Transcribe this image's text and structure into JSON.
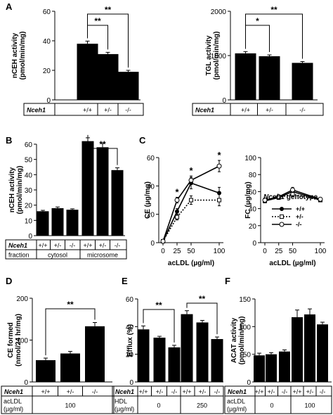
{
  "chart_data": [
    {
      "panel": "A",
      "type": "bar",
      "ylabel_lines": [
        "nCEH activity",
        "(pmol/min/mg)"
      ],
      "ylim": [
        0,
        60
      ],
      "yticks": [
        0,
        20,
        40,
        60
      ],
      "categories": [
        "+/+",
        "+/-",
        "-/-"
      ],
      "values": [
        38,
        31,
        19
      ],
      "errors": [
        1.8,
        1.2,
        1.0
      ],
      "table": [
        {
          "label": "Nceh1",
          "italic": true,
          "cells": [
            "+/+",
            "+/-",
            "-/-"
          ]
        }
      ],
      "significance": [
        {
          "from": 0,
          "to": 1,
          "label": "**"
        },
        {
          "from": 0,
          "to": 2,
          "label": "**"
        }
      ]
    },
    {
      "panel": "",
      "type": "bar",
      "ylabel_lines": [
        "TGL activity",
        "(pmol/min/mg)"
      ],
      "ylim": [
        0,
        2000
      ],
      "yticks": [
        0,
        1000,
        2000
      ],
      "categories": [
        "+/+",
        "+/-",
        "-/-"
      ],
      "values": [
        1050,
        985,
        835
      ],
      "errors": [
        40,
        30,
        30
      ],
      "table": [
        {
          "label": "Nceh1",
          "italic": true,
          "cells": [
            "+/+",
            "+/-",
            "-/-"
          ]
        }
      ],
      "significance": [
        {
          "from": 0,
          "to": 1,
          "label": "*"
        },
        {
          "from": 0,
          "to": 2,
          "label": "**"
        }
      ]
    },
    {
      "panel": "B",
      "type": "bar",
      "ylabel_lines": [
        "nCEH activity",
        "(pmol/min/mg)"
      ],
      "ylim": [
        0,
        60
      ],
      "yticks": [
        0,
        10,
        20,
        30,
        40,
        50,
        60
      ],
      "categories": [
        "+/+",
        "+/-",
        "-/-",
        "+/+",
        "+/-",
        "-/-"
      ],
      "values": [
        16,
        18,
        17,
        62,
        58,
        43
      ],
      "errors": [
        0.6,
        0.8,
        0.6,
        2.2,
        2.5,
        1.5
      ],
      "table": [
        {
          "label": "Nceh1",
          "italic": true,
          "cells": [
            "+/+",
            "+/-",
            "-/-",
            "+/+",
            "+/-",
            "-/-"
          ]
        },
        {
          "label": "fraction",
          "italic": false,
          "groups": [
            {
              "text": "cytosol",
              "span": 3
            },
            {
              "text": "microsome",
              "span": 3
            }
          ]
        }
      ],
      "significance": [
        {
          "from": 3,
          "to": 5,
          "label": "**"
        }
      ]
    },
    {
      "panel": "C",
      "type": "line",
      "ylabel": "CE (µg/mg)",
      "xlabel": "acLDL (µg/ml)",
      "x": [
        0,
        25,
        50,
        100
      ],
      "xticks": [
        0,
        25,
        50,
        100
      ],
      "ylim": [
        0,
        60
      ],
      "yticks": [
        0,
        20,
        40,
        60
      ],
      "series": [
        {
          "name": "+/+",
          "values": [
            1,
            22,
            42,
            35
          ],
          "errors": [
            0.5,
            2,
            4,
            4
          ],
          "style": "solid",
          "marker": "filled"
        },
        {
          "name": "+/-",
          "values": [
            1,
            18,
            30,
            30
          ],
          "errors": [
            0.5,
            2,
            3,
            4
          ],
          "style": "dotted",
          "marker": "square"
        },
        {
          "name": "-/-",
          "values": [
            1,
            30,
            44,
            54
          ],
          "errors": [
            0.5,
            2,
            3,
            4
          ],
          "style": "solid",
          "marker": "open"
        }
      ],
      "stars": [
        {
          "x": 25,
          "label": "*"
        },
        {
          "x": 50,
          "label": "*"
        },
        {
          "x": 100,
          "label": "*"
        }
      ]
    },
    {
      "panel": "",
      "type": "line",
      "ylabel": "FC (µg/mg)",
      "xlabel": "acLDL (µg/ml)",
      "x": [
        0,
        25,
        50,
        100
      ],
      "xticks": [
        0,
        25,
        50,
        100
      ],
      "ylim": [
        0,
        100
      ],
      "yticks": [
        0,
        20,
        40,
        60,
        80,
        100
      ],
      "series": [
        {
          "name": "+/+",
          "values": [
            49,
            53,
            60,
            50
          ],
          "errors": [
            2,
            2,
            3,
            2
          ],
          "style": "solid",
          "marker": "filled"
        },
        {
          "name": "+/-",
          "values": [
            49,
            53,
            57,
            50
          ],
          "errors": [
            2,
            2,
            3,
            2
          ],
          "style": "dotted",
          "marker": "square"
        },
        {
          "name": "-/-",
          "values": [
            50,
            54,
            62,
            51
          ],
          "errors": [
            2,
            2,
            3,
            2
          ],
          "style": "solid",
          "marker": "open"
        }
      ],
      "legend_title_italic": "Nceh1",
      "legend_title_rest": " genotype"
    },
    {
      "panel": "D",
      "type": "bar",
      "ylabel_lines": [
        "CE formed",
        "(nmol/24 hr/mg)"
      ],
      "ylim": [
        0,
        200
      ],
      "yticks": [
        0,
        100,
        200
      ],
      "categories": [
        "+/+",
        "+/-",
        "-/-"
      ],
      "values": [
        52,
        68,
        133
      ],
      "errors": [
        5,
        5,
        9
      ],
      "table": [
        {
          "label": "Nceh1",
          "italic": true,
          "cells": [
            "+/+",
            "+/-",
            "-/-"
          ]
        },
        {
          "label_lines": [
            "acLDL",
            "(µg/ml)"
          ],
          "italic": false,
          "groups": [
            {
              "text": "100",
              "span": 3
            }
          ]
        }
      ],
      "significance": [
        {
          "from": 0,
          "to": 2,
          "label": "**"
        }
      ]
    },
    {
      "panel": "E",
      "type": "bar",
      "ylabel": "Efflux (%)",
      "ylim": [
        0,
        60
      ],
      "yticks": [
        0,
        20,
        40,
        60
      ],
      "categories": [
        "+/+",
        "+/-",
        "-/-",
        "+/+",
        "+/-",
        "-/-"
      ],
      "values": [
        38,
        32,
        25,
        49,
        43,
        31
      ],
      "errors": [
        2.5,
        1.0,
        1.5,
        2.5,
        1.5,
        1.5
      ],
      "table": [
        {
          "label": "Nceh1",
          "italic": true,
          "cells": [
            "+/+",
            "+/-",
            "-/-",
            "+/+",
            "+/-",
            "-/-"
          ]
        },
        {
          "label_lines": [
            "HDL",
            "(µg/ml)"
          ],
          "italic": false,
          "groups": [
            {
              "text": "0",
              "span": 3
            },
            {
              "text": "250",
              "span": 3
            }
          ]
        }
      ],
      "significance": [
        {
          "from": 0,
          "to": 2,
          "label": "**"
        },
        {
          "from": 3,
          "to": 5,
          "label": "**"
        }
      ]
    },
    {
      "panel": "F",
      "type": "bar",
      "ylabel_lines": [
        "ACAT activity",
        "(pmol/min/mg)"
      ],
      "ylim": [
        0,
        150
      ],
      "yticks": [
        0,
        50,
        100,
        150
      ],
      "categories": [
        "+/+",
        "+/-",
        "-/-",
        "+/+",
        "+/-",
        "-/-"
      ],
      "values": [
        48,
        50,
        55,
        117,
        122,
        104
      ],
      "errors": [
        4,
        3,
        3,
        13,
        10,
        4
      ],
      "table": [
        {
          "label": "Nceh1",
          "italic": true,
          "cells": [
            "+/+",
            "+/-",
            "-/-",
            "+/+",
            "+/-",
            "-/-"
          ]
        },
        {
          "label_lines": [
            "acLDL",
            "(µg/ml)"
          ],
          "italic": false,
          "groups": [
            {
              "text": "0",
              "span": 3
            },
            {
              "text": "100",
              "span": 3
            }
          ]
        }
      ],
      "significance": []
    }
  ]
}
